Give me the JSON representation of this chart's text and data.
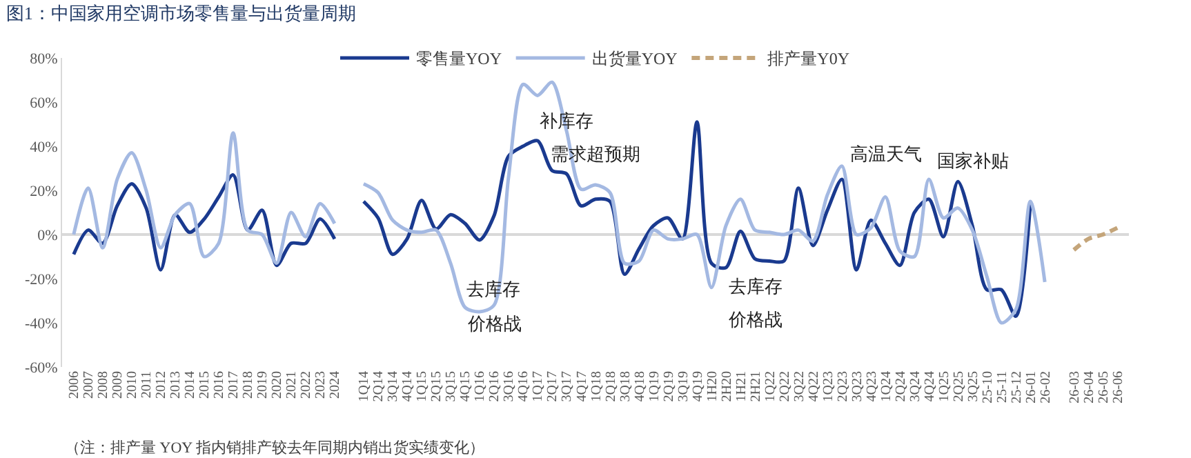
{
  "chart_data": {
    "type": "line",
    "title": "图1：中国家用空调市场零售量与出货量周期",
    "categories": [
      "2006",
      "2007",
      "2008",
      "2009",
      "2010",
      "2011",
      "2012",
      "2013",
      "2014",
      "2015",
      "2016",
      "2017",
      "2018",
      "2019",
      "2020",
      "2021",
      "2022",
      "2023",
      "2024",
      null,
      "1Q14",
      "2Q14",
      "3Q14",
      "4Q14",
      "1Q15",
      "2Q15",
      "3Q15",
      "4Q15",
      "1Q16",
      "2Q16",
      "3Q16",
      "4Q16",
      "1Q17",
      "2Q17",
      "3Q17",
      "4Q17",
      "1Q18",
      "2Q18",
      "3Q18",
      "4Q18",
      "1Q19",
      "2Q19",
      "3Q19",
      "4Q19",
      "1H20",
      "2H20",
      "1H21",
      "2H21",
      "1Q22",
      "2Q22",
      "3Q22",
      "4Q22",
      "1Q23",
      "2Q23",
      "3Q23",
      "4Q23",
      "1Q24",
      "2Q24",
      "3Q24",
      "4Q24",
      "1Q25",
      "2Q25",
      "3Q25",
      "25-10",
      "25-11",
      "25-12",
      "26-01",
      "26-02",
      null,
      "26-03",
      "26-04",
      "26-05",
      "26-06"
    ],
    "series": [
      {
        "name": "零售量YOY",
        "color": "#1a3a8f",
        "values": [
          -9,
          2,
          -4,
          13,
          23,
          12,
          -16,
          9,
          1,
          7,
          17,
          27,
          2,
          11,
          -14,
          -4,
          -4,
          7,
          -2,
          null,
          15,
          7.5,
          -9,
          -2,
          15.5,
          2.5,
          9,
          5,
          -2.5,
          8.5,
          35.5,
          40,
          42.5,
          29,
          27.5,
          13,
          16,
          15,
          -18,
          -6.5,
          4,
          7.5,
          -2,
          51,
          -13,
          -15,
          1.5,
          -11,
          -12,
          -12,
          21,
          -5,
          11,
          25,
          -16,
          6.5,
          -4,
          -14,
          10,
          16,
          -1,
          24,
          4,
          -25,
          -25,
          -37,
          14,
          null,
          null,
          null,
          null,
          null,
          null
        ]
      },
      {
        "name": "出货量YOY",
        "color": "#a4b9e2",
        "values": [
          0,
          21,
          -6,
          25,
          37,
          20,
          -6,
          9,
          14,
          -10,
          -4,
          46,
          2,
          0,
          -13,
          10,
          -1,
          14,
          5,
          null,
          23,
          19,
          6.5,
          2,
          1,
          2,
          -13,
          -33,
          -35,
          -32,
          26,
          68,
          63,
          69,
          47,
          20.5,
          22.5,
          19,
          -13,
          -12,
          2,
          -2,
          -2,
          0,
          -24,
          4,
          16,
          2,
          1,
          0,
          2,
          -3,
          18,
          31,
          0,
          3,
          17,
          -7.5,
          -10,
          25,
          7.5,
          12,
          2,
          -19,
          -40,
          -34,
          15,
          -21.5,
          null,
          null,
          null,
          null,
          null
        ]
      },
      {
        "name": "排产量Y0Y",
        "color": "#c4a57a",
        "line_style": "dashed",
        "values": [
          null,
          null,
          null,
          null,
          null,
          null,
          null,
          null,
          null,
          null,
          null,
          null,
          null,
          null,
          null,
          null,
          null,
          null,
          null,
          null,
          null,
          null,
          null,
          null,
          null,
          null,
          null,
          null,
          null,
          null,
          null,
          null,
          null,
          null,
          null,
          null,
          null,
          null,
          null,
          null,
          null,
          null,
          null,
          null,
          null,
          null,
          null,
          null,
          null,
          null,
          null,
          null,
          null,
          null,
          null,
          null,
          null,
          null,
          null,
          null,
          null,
          null,
          null,
          null,
          null,
          null,
          null,
          null,
          null,
          -7,
          -2,
          0,
          3
        ]
      }
    ],
    "ylim": [
      -60,
      80
    ],
    "yticks": [
      {
        "value": -60,
        "label": "-60%"
      },
      {
        "value": -40,
        "label": "-40%"
      },
      {
        "value": -20,
        "label": "-20%"
      },
      {
        "value": 0,
        "label": "0%"
      },
      {
        "value": 20,
        "label": "20%"
      },
      {
        "value": 40,
        "label": "40%"
      },
      {
        "value": 60,
        "label": "60%"
      },
      {
        "value": 80,
        "label": "80%"
      }
    ],
    "grid": false,
    "ref_lines": [
      {
        "axis": "y",
        "value": 0,
        "color": "#d9d9d9"
      }
    ],
    "legend": "top",
    "annotations": [
      "补库存",
      "需求超预期",
      "去库存",
      "价格战",
      "去库存",
      "价格战",
      "高温天气",
      "国家补贴",
      "（注：排产量 YOY 指内销排产较去年同期内销出货实绩变化）"
    ]
  }
}
